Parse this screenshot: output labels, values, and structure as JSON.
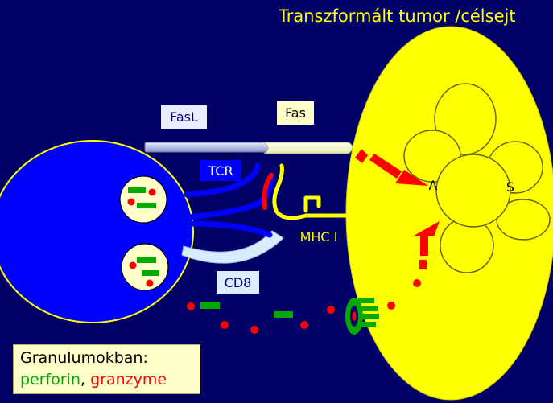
{
  "title": "Transzformált tumor /célsejt",
  "labels": {
    "fasl": "FasL",
    "fas": "Fas",
    "tcr": "TCR",
    "mhc": "MHC I",
    "cd8": "CD8",
    "apoptosis_left": "A",
    "apoptosis_right": "S"
  },
  "legend": {
    "line1": "Granulumokban:",
    "perforin": "perforin",
    "separator": ", ",
    "granzyme": "granzyme"
  },
  "colors": {
    "background": "#000066",
    "t_cell": "#0000ff",
    "target_cell": "#ffff00",
    "granule": "#ffffcc",
    "perforin": "#00aa00",
    "granzyme": "#ff0000",
    "arrow": "#ff0000"
  }
}
